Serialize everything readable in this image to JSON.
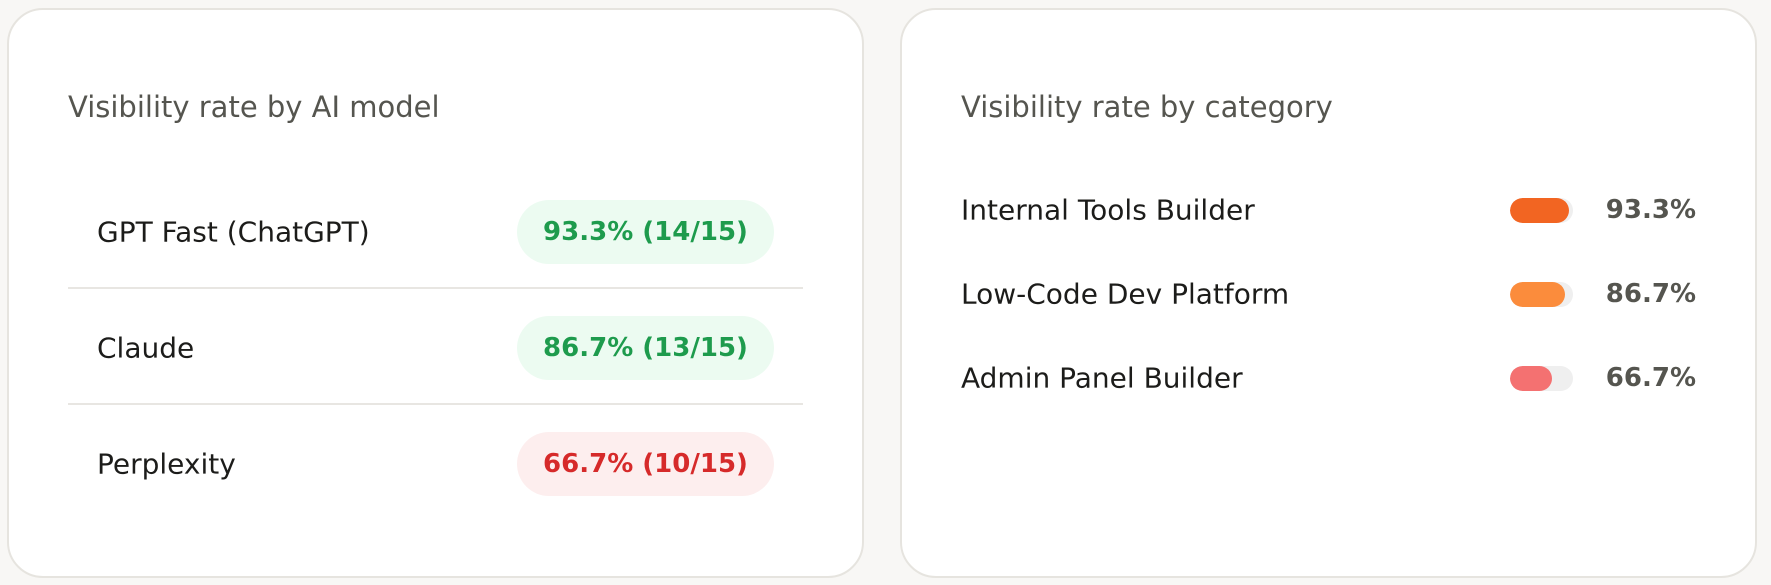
{
  "left_card": {
    "title": "Visibility rate by AI model",
    "rows": [
      {
        "label": "GPT Fast (ChatGPT)",
        "badge": "93.3% (14/15)",
        "color": "#1e9b4d",
        "background": "#ecfbf1"
      },
      {
        "label": "Claude",
        "badge": "86.7% (13/15)",
        "color": "#1e9b4d",
        "background": "#ecfbf1"
      },
      {
        "label": "Perplexity",
        "badge": "66.7% (10/15)",
        "color": "#d62a2a",
        "background": "#fdeeee"
      }
    ]
  },
  "right_card": {
    "title": "Visibility rate by category",
    "rows": [
      {
        "label": "Internal Tools Builder",
        "value": 93.3,
        "value_label": "93.3%",
        "color": "#f26522"
      },
      {
        "label": "Low-Code Dev Platform",
        "value": 86.7,
        "value_label": "86.7%",
        "color": "#fb8c3c"
      },
      {
        "label": "Admin Panel Builder",
        "value": 66.7,
        "value_label": "66.7%",
        "color": "#f47171"
      }
    ]
  }
}
